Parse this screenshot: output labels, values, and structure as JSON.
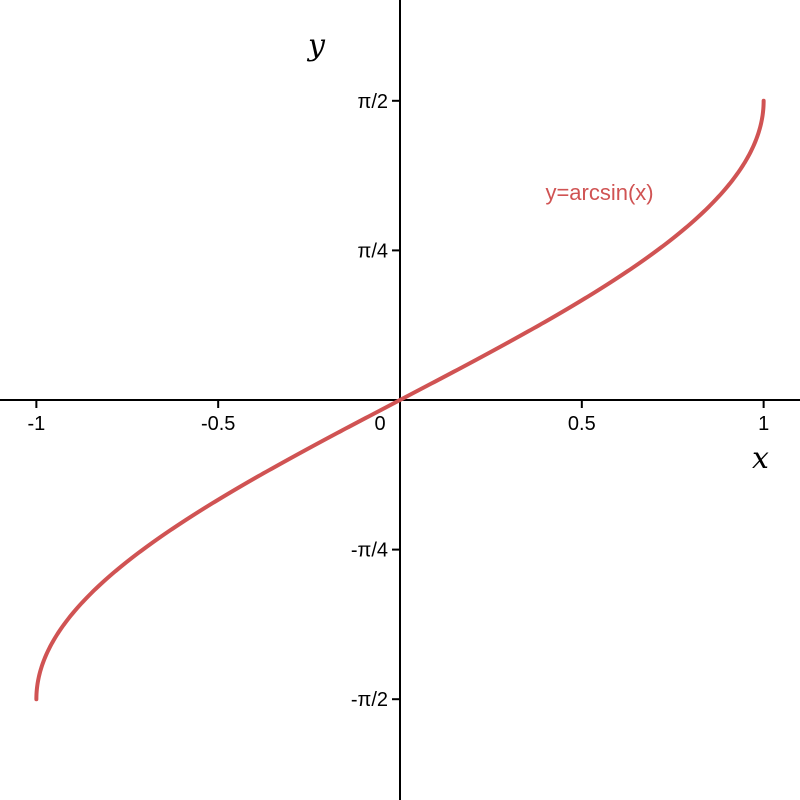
{
  "chart_data": {
    "type": "line",
    "xlabel": "x",
    "ylabel": "y",
    "xlim": [
      -1.1,
      1.1
    ],
    "ylim": [
      -2.1,
      2.1
    ],
    "x_ticks": [
      {
        "value": -1,
        "label": "-1"
      },
      {
        "value": -0.5,
        "label": "-0.5"
      },
      {
        "value": 0,
        "label": "0"
      },
      {
        "value": 0.5,
        "label": "0.5"
      },
      {
        "value": 1,
        "label": "1"
      }
    ],
    "y_ticks": [
      {
        "value": -1.5708,
        "label": "-π/2"
      },
      {
        "value": -0.7854,
        "label": "-π/4"
      },
      {
        "value": 0.7854,
        "label": "π/4"
      },
      {
        "value": 1.5708,
        "label": "π/2"
      }
    ],
    "series": [
      {
        "name": "y=arcsin(x)",
        "color": "#d05353",
        "x": [
          -1,
          -0.99,
          -0.95,
          -0.9,
          -0.8,
          -0.7,
          -0.6,
          -0.5,
          -0.4,
          -0.3,
          -0.2,
          -0.1,
          0,
          0.1,
          0.2,
          0.3,
          0.4,
          0.5,
          0.6,
          0.7,
          0.8,
          0.9,
          0.95,
          0.99,
          1
        ],
        "y": [
          -1.5708,
          -1.4293,
          -1.2532,
          -1.1198,
          -0.9273,
          -0.7754,
          -0.6435,
          -0.5236,
          -0.4115,
          -0.3047,
          -0.2014,
          -0.1002,
          0,
          0.1002,
          0.2014,
          0.3047,
          0.4115,
          0.5236,
          0.6435,
          0.7754,
          0.9273,
          1.1198,
          1.2532,
          1.4293,
          1.5708
        ]
      }
    ],
    "grid": false,
    "legend": "curve-label"
  }
}
